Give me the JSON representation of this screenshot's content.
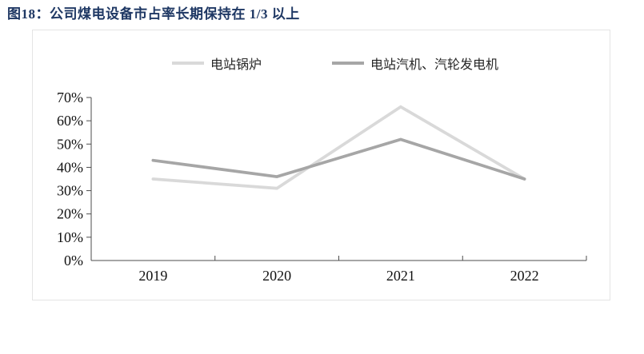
{
  "header": {
    "title": "图18：公司煤电设备市占率长期保持在 1/3 以上",
    "title_color": "#1f3864"
  },
  "chart_data": {
    "type": "line",
    "title": "公司煤电设备市占率长期保持在 1/3 以上",
    "categories": [
      "2019",
      "2020",
      "2021",
      "2022"
    ],
    "series": [
      {
        "name": "电站锅炉",
        "color": "#d9d9d9",
        "values": [
          35,
          31,
          66,
          35
        ]
      },
      {
        "name": "电站汽机、汽轮发电机",
        "color": "#a6a6a6",
        "values": [
          43,
          36,
          52,
          35
        ]
      }
    ],
    "ylim": [
      0,
      70
    ],
    "ytick_step": 10,
    "ytick_format": "percent",
    "ytick_labels": [
      "0%",
      "10%",
      "20%",
      "30%",
      "40%",
      "50%",
      "60%",
      "70%"
    ],
    "xlabel": "",
    "ylabel": "",
    "grid": false,
    "legend_position": "top",
    "axis_color": "#4d4d4d",
    "line_width": 3.75
  }
}
